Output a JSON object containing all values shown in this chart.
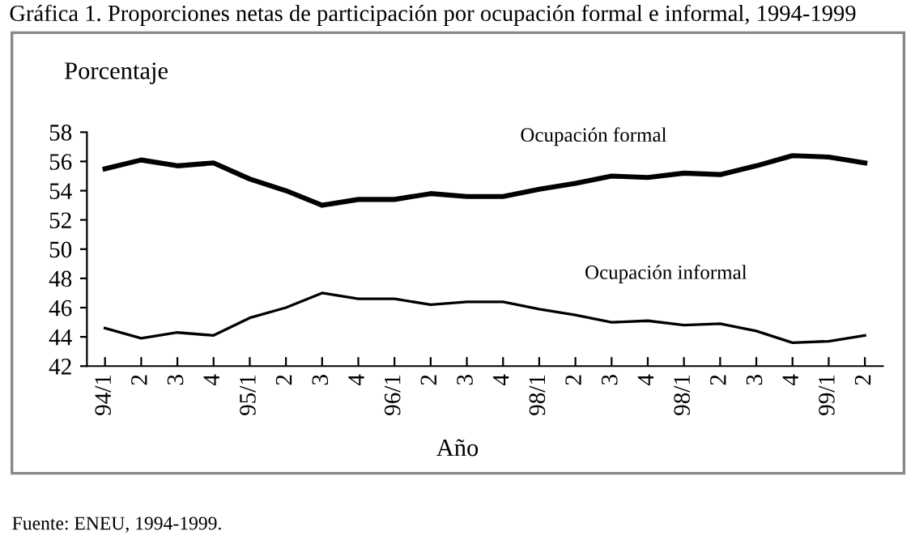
{
  "chart_data": {
    "type": "line",
    "title": "Gráfica 1. Proporciones netas de participación por ocupación formal e informal, 1994-1999",
    "ylabel": "Porcentaje",
    "xlabel": "Año",
    "categories": [
      "94/1",
      "2",
      "3",
      "4",
      "95/1",
      "2",
      "3",
      "4",
      "96/1",
      "2",
      "3",
      "4",
      "98/1",
      "2",
      "3",
      "4",
      "98/1",
      "2",
      "3",
      "4",
      "99/1",
      "2"
    ],
    "series": [
      {
        "name": "Ocupación formal",
        "color": "#000000",
        "values": [
          55.5,
          56.1,
          55.7,
          55.9,
          54.8,
          54.0,
          53.0,
          53.4,
          53.4,
          53.8,
          53.6,
          53.6,
          54.1,
          54.5,
          55.0,
          54.9,
          55.2,
          55.1,
          55.7,
          56.4,
          56.3,
          55.9
        ]
      },
      {
        "name": "Ocupación informal",
        "color": "#000000",
        "values": [
          44.6,
          43.9,
          44.3,
          44.1,
          45.3,
          46.0,
          47.0,
          46.6,
          46.6,
          46.2,
          46.4,
          46.4,
          45.9,
          45.5,
          45.0,
          45.1,
          44.8,
          44.9,
          44.4,
          43.6,
          43.7,
          44.1
        ]
      }
    ],
    "ylim": [
      42,
      58
    ],
    "yticks": [
      42,
      44,
      46,
      48,
      50,
      52,
      54,
      56,
      58
    ],
    "grid": false,
    "legend": false,
    "marker": "none",
    "line_style": "solid",
    "annotations": [
      "Fuente: ENEU, 1994-1999."
    ]
  }
}
